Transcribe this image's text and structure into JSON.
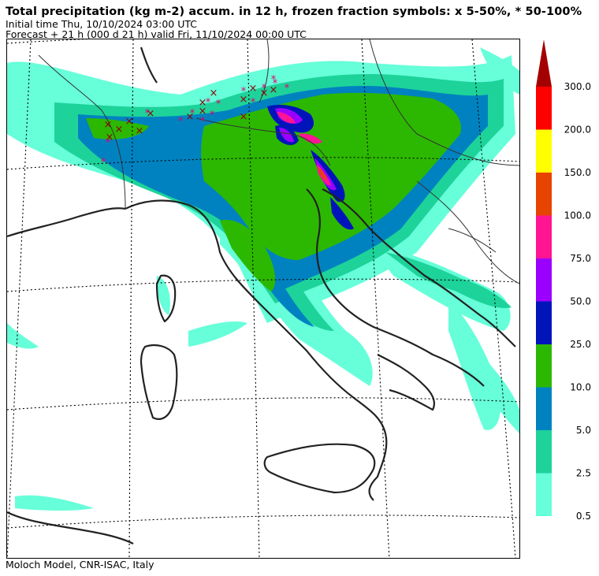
{
  "header": {
    "title": "Total precipitation (kg m-2) accum. in 12 h, frozen fraction symbols: x 5-50%, * 50-100%",
    "initial_time": "Initial time  Thu, 10/10/2024  03:00 UTC",
    "forecast": "Forecast  +  21 h  (000 d 21 h)  valid Fri, 11/10/2024 00:00 UTC"
  },
  "footer": {
    "credit": "Moloch Model, CNR-ISAC, Italy"
  },
  "legend": {
    "colors": [
      "#66ffd9",
      "#1dd39a",
      "#0082c0",
      "#2cb800",
      "#0015b9",
      "#9b00ff",
      "#ff1493",
      "#e64400",
      "#ffff00",
      "#ff0000",
      "#a50000"
    ],
    "labels": [
      "0.5",
      "2.5",
      "5.0",
      "10.0",
      "25.0",
      "50.0",
      "75.0",
      "100.0",
      "150.0",
      "200.0",
      "300.0"
    ]
  },
  "symbols": {
    "x_color": "#8b0000",
    "star_color": "#e0006e"
  }
}
